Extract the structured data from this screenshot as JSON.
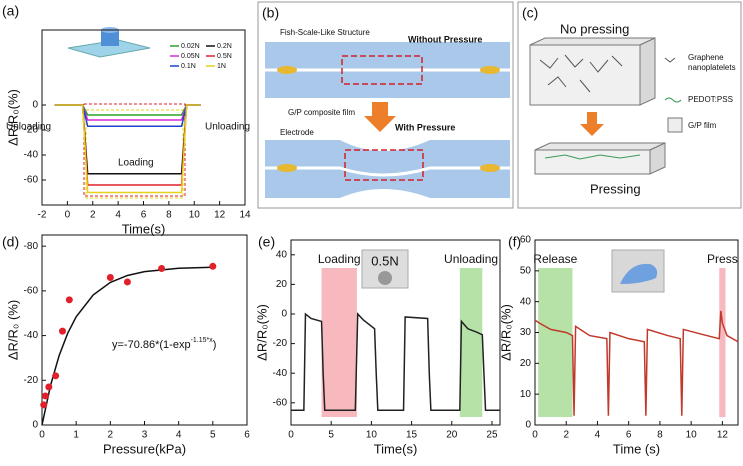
{
  "chart_data": [
    {
      "type": "line",
      "panel": "(a)",
      "xlabel": "Time(s)",
      "ylabel": "ΔR/R₀(%)",
      "xlim": [
        -2,
        14
      ],
      "xticks": [
        -2,
        0,
        2,
        4,
        6,
        8,
        10,
        12,
        14
      ],
      "ylim": [
        -80,
        60
      ],
      "yticks": [
        -60,
        -40,
        -20,
        0
      ],
      "legend": true,
      "annotations": [
        "Unloading",
        "Loading",
        "Unloading"
      ],
      "series": [
        {
          "name": "0.02N",
          "color": "#2ca02c",
          "x": [
            -1,
            1.2,
            1.6,
            9,
            9.4,
            10.5
          ],
          "values": [
            0,
            0,
            -8,
            -8,
            0,
            0
          ]
        },
        {
          "name": "0.2N",
          "color": "#111111",
          "x": [
            -1,
            1.2,
            1.6,
            9,
            9.4,
            10.5
          ],
          "values": [
            0,
            0,
            -55,
            -55,
            0,
            0
          ]
        },
        {
          "name": "0.05N",
          "color": "#d62ad6",
          "x": [
            -1,
            1.2,
            1.6,
            9,
            9.4,
            10.5
          ],
          "values": [
            0,
            0,
            -12,
            -12,
            0,
            0
          ]
        },
        {
          "name": "0.5N",
          "color": "#e0202a",
          "x": [
            -1,
            1.2,
            1.6,
            9,
            9.4,
            10.5
          ],
          "values": [
            0,
            0,
            -64,
            -64,
            0,
            0
          ]
        },
        {
          "name": "0.1N",
          "color": "#2040d0",
          "x": [
            -1,
            1.2,
            1.6,
            9,
            9.4,
            10.5
          ],
          "values": [
            0,
            0,
            -17,
            -17,
            0,
            0
          ]
        },
        {
          "name": "1N",
          "color": "#e6d21a",
          "x": [
            -1,
            1.2,
            1.6,
            9,
            9.4,
            10.5
          ],
          "values": [
            0,
            0,
            -70,
            -70,
            0,
            0
          ]
        }
      ]
    },
    {
      "type": "scatter",
      "panel": "(d)",
      "xlabel": "Pressure(kPa)",
      "ylabel": "ΔR/R₀ (%)",
      "xlim": [
        0,
        6
      ],
      "xticks": [
        0,
        1,
        2,
        3,
        4,
        5,
        6
      ],
      "ylim": [
        0,
        -85
      ],
      "yticks": [
        0,
        -20,
        -40,
        -60,
        -80
      ],
      "equation": [
        "y=-70.86*(1-exp",
        "-1.15*x",
        ")"
      ],
      "series": [
        {
          "color": "#e0202a",
          "x": [
            0.05,
            0.1,
            0.2,
            0.4,
            0.6,
            0.8,
            2,
            2.5,
            3.5,
            5
          ],
          "values": [
            -9,
            -13,
            -17,
            -22,
            -42,
            -56,
            -66,
            -64,
            -70,
            -71
          ]
        }
      ],
      "fit": {
        "color": "#111111",
        "x": [
          0,
          0.25,
          0.5,
          0.75,
          1,
          1.5,
          2,
          2.5,
          3,
          4,
          5
        ],
        "values": [
          0,
          -17.7,
          -31,
          -40.95,
          -48.4,
          -58.2,
          -63.8,
          -66.9,
          -68.6,
          -70.15,
          -70.6
        ]
      }
    },
    {
      "type": "line",
      "panel": "(e)",
      "xlabel": "Time(s)",
      "ylabel": "ΔR/R₀(%)",
      "xlim": [
        0,
        26
      ],
      "xticks": [
        0,
        5,
        10,
        15,
        20,
        25
      ],
      "ylim": [
        -75,
        50
      ],
      "yticks": [
        -60,
        -40,
        -20,
        0,
        20,
        40
      ],
      "inset_label": "0.5N",
      "highlights": [
        {
          "label": "Loading",
          "color": "#f4a0a8",
          "x": [
            3.8,
            8.2
          ]
        },
        {
          "label": "Unloading",
          "color": "#9ed88a",
          "x": [
            21,
            23.8
          ]
        }
      ],
      "series": [
        {
          "color": "#222222",
          "x": [
            0,
            1.6,
            1.8,
            2.5,
            3.8,
            4,
            4.2,
            8,
            8.3,
            9,
            10.4,
            10.6,
            10.8,
            14,
            14.2,
            17,
            17.2,
            17.4,
            21,
            21.2,
            22,
            23,
            23.8,
            24,
            24.2,
            26
          ],
          "values": [
            -65,
            -65,
            0,
            -3,
            -5,
            -40,
            -65,
            -65,
            0,
            -4,
            -10,
            -40,
            -65,
            -65,
            -2,
            -3,
            -40,
            -65,
            -65,
            -5,
            -10,
            -12,
            -14,
            -40,
            -65,
            -65
          ]
        }
      ]
    },
    {
      "type": "line",
      "panel": "(f)",
      "xlabel": "Time (s)",
      "ylabel": "ΔR/R₀(%)",
      "xlim": [
        0,
        13
      ],
      "xticks": [
        0,
        2,
        4,
        6,
        8,
        10,
        12
      ],
      "ylim": [
        0,
        60
      ],
      "yticks": [
        0,
        10,
        20,
        30,
        40,
        50,
        60
      ],
      "highlights": [
        {
          "label": "Release",
          "color": "#9ed88a",
          "x": [
            0.2,
            2.4
          ]
        },
        {
          "label": "Press",
          "color": "#f4a0a8",
          "x": [
            11.8,
            12.2
          ]
        }
      ],
      "series": [
        {
          "color": "#c0392b",
          "x": [
            0,
            0.3,
            1,
            2,
            2.4,
            2.5,
            2.6,
            3.5,
            4.6,
            4.7,
            4.8,
            6,
            7,
            7.1,
            7.2,
            8.5,
            9.3,
            9.4,
            9.5,
            11,
            11.8,
            11.9,
            12,
            12.3,
            13
          ],
          "values": [
            34,
            33,
            31,
            30,
            29,
            3,
            32,
            29,
            28,
            3,
            30,
            28,
            27,
            3,
            31,
            29,
            28,
            3,
            31,
            29,
            28,
            37,
            33,
            29,
            27
          ]
        }
      ]
    }
  ],
  "diagram_b": {
    "panel": "(b)",
    "structure": "Fish-Scale-Like Structure",
    "without": "Without Pressure",
    "film": "G/P composite film",
    "electrode": "Electrode",
    "with": "With Pressure"
  },
  "diagram_c": {
    "panel": "(c)",
    "top": "No pressing",
    "graphene1": "Graphene",
    "graphene2": "nanoplatelets",
    "pedot": "PEDOT:PSS",
    "film": "G/P film",
    "bottom": "Pressing"
  }
}
